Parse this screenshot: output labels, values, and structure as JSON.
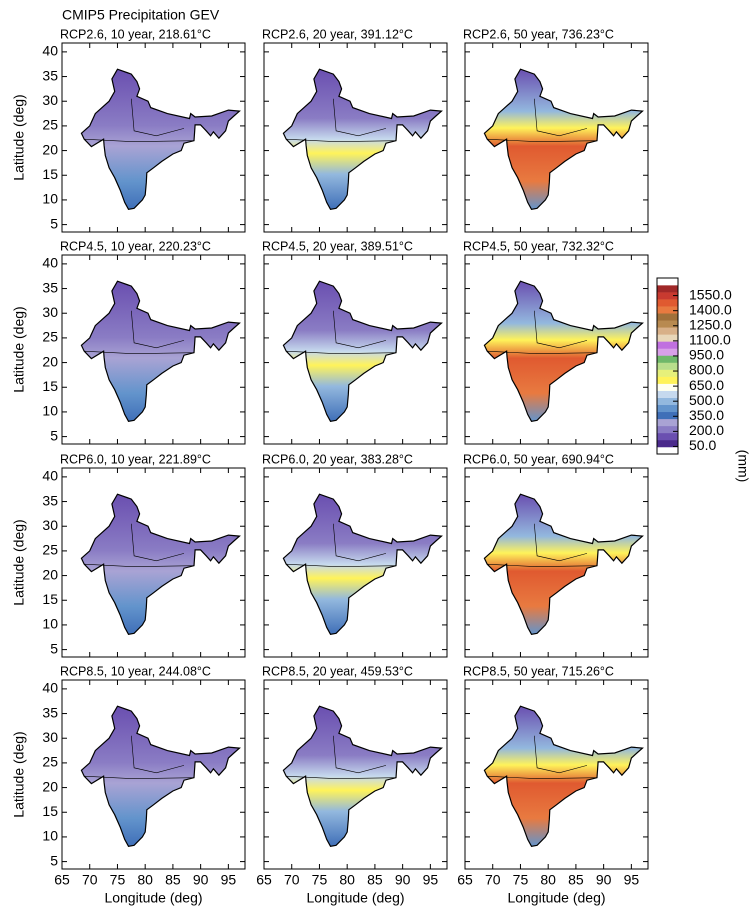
{
  "chart_data": {
    "type": "map-grid",
    "title": "CMIP5 Precipitation GEV",
    "panel_titles": [
      "RCP2.6, 10 year, 218.61°C",
      "RCP2.6, 20 year, 391.12°C",
      "RCP2.6, 50 year, 736.23°C",
      "RCP4.5, 10 year, 220.23°C",
      "RCP4.5, 20 year, 389.51°C",
      "RCP4.5, 50 year, 732.32°C",
      "RCP6.0, 10 year, 221.89°C",
      "RCP6.0, 20 year, 383.28°C",
      "RCP6.0, 50 year, 690.94°C",
      "RCP8.5, 10 year, 244.08°C",
      "RCP8.5, 20 year, 459.53°C",
      "RCP8.5, 50 year, 715.26°C"
    ],
    "xlabel": "Longitude (deg)",
    "ylabel": "Latitude (deg)",
    "xlim": [
      65,
      98
    ],
    "ylim": [
      3.5,
      41.8
    ],
    "xticks": [
      65,
      70,
      75,
      80,
      85,
      90,
      95
    ],
    "yticks": [
      5,
      10,
      15,
      20,
      25,
      30,
      35,
      40
    ],
    "colorbar": {
      "label": "(mm)",
      "lim": [
        -25,
        1725
      ],
      "ticks": [
        {
          "value": 50,
          "label": "50.0"
        },
        {
          "value": 200,
          "label": "200.0"
        },
        {
          "value": 350,
          "label": "350.0"
        },
        {
          "value": 500,
          "label": "500.0"
        },
        {
          "value": 650,
          "label": "650.0"
        },
        {
          "value": 800,
          "label": "800.0"
        },
        {
          "value": 950,
          "label": "950.0"
        },
        {
          "value": 1100,
          "label": "1100.0"
        },
        {
          "value": 1250,
          "label": "1250.0"
        },
        {
          "value": 1400,
          "label": "1400.0"
        },
        {
          "value": 1550,
          "label": "1550.0"
        }
      ],
      "colors": [
        "#ffffff",
        "#4b2a8c",
        "#6a4fb0",
        "#8a7cc4",
        "#a9a3d4",
        "#3f6fb8",
        "#6394cc",
        "#93b8de",
        "#c6d9ee",
        "#fffff0",
        "#fff35a",
        "#e6f07a",
        "#b8de8c",
        "#6fb86a",
        "#d8a0e8",
        "#c070e0",
        "#e8d6b8",
        "#d8b088",
        "#b88a50",
        "#a0703a",
        "#e87a40",
        "#e05a30",
        "#c83a30",
        "#a02828",
        "#ffffff"
      ]
    }
  }
}
